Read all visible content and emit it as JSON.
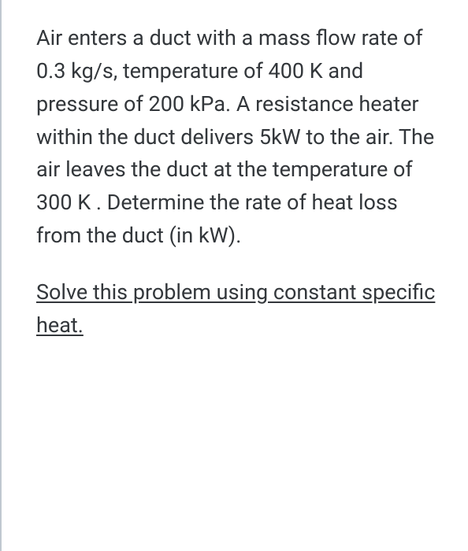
{
  "problem": {
    "statement": "Air enters a duct with a mass flow rate of 0.3 kg/s, temperature of 400 K and pressure of 200 kPa. A resistance heater within the duct delivers 5kW to the air. The air leaves the duct at the temperature of 300 K . Determine the rate of heat loss from the duct (in kW).",
    "instruction": "Solve this problem using constant specific heat."
  },
  "styling": {
    "text_color": "#33373b",
    "background_color": "#ffffff",
    "border_color": "#c0c8d0",
    "font_size_pt": 20,
    "line_height": 1.55,
    "font_family": "sans-serif"
  }
}
